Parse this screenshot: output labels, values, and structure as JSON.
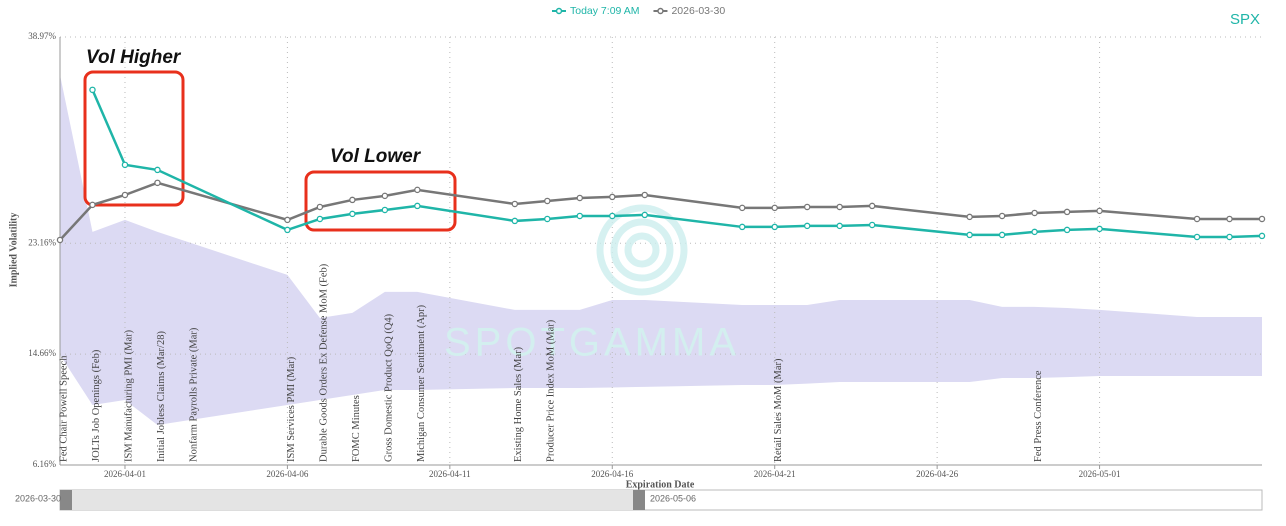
{
  "chart_data": {
    "type": "line",
    "ticker": "SPX",
    "x_label": "Expiration Date",
    "y_label": "Implied Volatility",
    "watermark": "SPOTGAMMA",
    "x": [
      "2026-03-30",
      "2026-03-31",
      "2026-04-01",
      "2026-04-02",
      "2026-04-06",
      "2026-04-07",
      "2026-04-08",
      "2026-04-09",
      "2026-04-10",
      "2026-04-13",
      "2026-04-14",
      "2026-04-15",
      "2026-04-16",
      "2026-04-17",
      "2026-04-20",
      "2026-04-21",
      "2026-04-22",
      "2026-04-23",
      "2026-04-24",
      "2026-04-27",
      "2026-04-28",
      "2026-04-29",
      "2026-04-30",
      "2026-05-01",
      "2026-05-04",
      "2026-05-05",
      "2026-05-06"
    ],
    "series": [
      {
        "name": "Today 7:09 AM",
        "color": "#1fb5a8",
        "values": [
          null,
          34.92,
          29.17,
          28.78,
          24.18,
          25.02,
          25.41,
          25.71,
          26.02,
          24.87,
          25.02,
          25.25,
          25.25,
          25.33,
          24.41,
          24.41,
          24.49,
          24.49,
          24.56,
          23.8,
          23.8,
          24.03,
          24.18,
          24.26,
          23.64,
          23.64,
          23.72
        ]
      },
      {
        "name": "2026-03-30",
        "color": "#777777",
        "values": [
          23.41,
          26.1,
          26.86,
          27.79,
          24.95,
          25.94,
          26.48,
          26.79,
          27.25,
          26.17,
          26.4,
          26.63,
          26.71,
          26.86,
          25.87,
          25.87,
          25.94,
          25.94,
          26.02,
          25.18,
          25.25,
          25.48,
          25.56,
          25.64,
          25.02,
          25.02,
          25.02
        ]
      }
    ],
    "band": {
      "color": "#dcdaf3",
      "upper": [
        36.07,
        24.03,
        24.95,
        24.03,
        20.73,
        17.43,
        17.82,
        19.43,
        19.43,
        18.05,
        18.05,
        18.05,
        18.81,
        18.81,
        18.43,
        18.43,
        18.43,
        18.81,
        18.81,
        18.81,
        18.28,
        18.28,
        18.2,
        18.05,
        17.51,
        17.51,
        17.51
      ],
      "lower": [
        14.6,
        10.76,
        11.14,
        9.23,
        10.76,
        11.14,
        11.53,
        11.91,
        11.91,
        12.06,
        12.06,
        12.06,
        12.1,
        12.15,
        12.29,
        12.29,
        12.4,
        12.52,
        12.52,
        12.52,
        12.83,
        12.83,
        12.9,
        12.98,
        12.98,
        12.98,
        12.98
      ]
    },
    "events": [
      {
        "date": "2026-03-30",
        "label": "Fed Chair Powell Speech"
      },
      {
        "date": "2026-03-31",
        "label": "JOLTs Job Openings (Feb)"
      },
      {
        "date": "2026-04-01",
        "label": "ISM Manufacturing PMI (Mar)"
      },
      {
        "date": "2026-04-02",
        "label": "Initial Jobless Claims (Mar/28)"
      },
      {
        "date": "2026-04-03",
        "label": "Nonfarm Payrolls Private (Mar)"
      },
      {
        "date": "2026-04-06",
        "label": "ISM Services PMI (Mar)"
      },
      {
        "date": "2026-04-07",
        "label": "Durable Goods Orders Ex Defense MoM (Feb)"
      },
      {
        "date": "2026-04-08",
        "label": "FOMC Minutes"
      },
      {
        "date": "2026-04-09",
        "label": "Gross Domestic Product QoQ (Q4)"
      },
      {
        "date": "2026-04-10",
        "label": "Michigan Consumer Sentiment (Apr)"
      },
      {
        "date": "2026-04-13",
        "label": "Existing Home Sales (Mar)"
      },
      {
        "date": "2026-04-14",
        "label": "Producer Price Index MoM (Mar)"
      },
      {
        "date": "2026-04-21",
        "label": "Retail Sales MoM (Mar)"
      },
      {
        "date": "2026-04-29",
        "label": "Fed Press Conference"
      }
    ],
    "annotations": [
      {
        "text": "Vol Higher"
      },
      {
        "text": "Vol Lower"
      }
    ],
    "xlim": [
      "2026-03-30",
      "2026-05-06"
    ],
    "xticks": [
      "2026-04-01",
      "2026-04-06",
      "2026-04-11",
      "2026-04-16",
      "2026-04-21",
      "2026-04-26",
      "2026-05-01"
    ],
    "ylim": [
      6.16,
      38.97
    ],
    "yticks": [
      {
        "value": 6.16,
        "label": "6.16%"
      },
      {
        "value": 14.66,
        "label": "14.66%"
      },
      {
        "value": 23.16,
        "label": "23.16%"
      },
      {
        "value": 38.97,
        "label": "38.97%"
      }
    ],
    "grid": true
  }
}
